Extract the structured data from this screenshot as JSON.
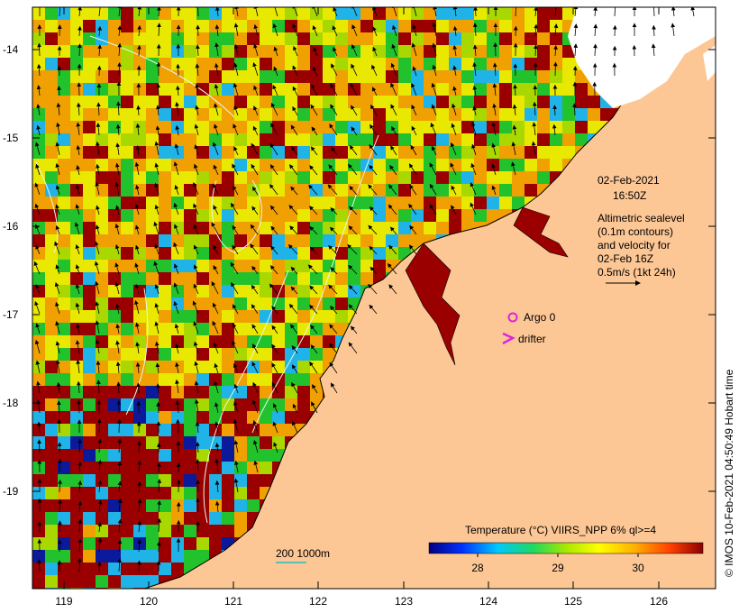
{
  "map": {
    "lon_ticks": [
      "119",
      "120",
      "121",
      "122",
      "123",
      "124",
      "125",
      "126"
    ],
    "lat_ticks": [
      "-14",
      "-15",
      "-16",
      "-17",
      "-18",
      "-19"
    ],
    "colors": {
      "land": "#fdc795",
      "cold": "#0a1a9a",
      "cool": "#1fb3e8",
      "mid": "#22c22c",
      "warm": "#e8e800",
      "hot": "#f0a000",
      "hottest": "#9a0000",
      "cloud": "#ffffff",
      "coast": "#000000",
      "contour": "#e6f6f0"
    }
  },
  "annotation": {
    "date": "02-Feb-2021",
    "time": "16:50Z",
    "caption_lines": [
      "Altimetric sealevel",
      "(0.1m contours)",
      "and velocity for",
      "02-Feb 16Z",
      "0.5m/s (1kt 24h)"
    ]
  },
  "legend": {
    "argo_label": "Argo 0",
    "drifter_label": "drifter",
    "depth_scale": "200  1000m"
  },
  "colorbar": {
    "title": "Temperature (°C) VIIRS_NPP 6% ql>=4",
    "ticks": [
      "28",
      "29",
      "30"
    ]
  },
  "credit": "© IMOS 10-Feb-2021 04:50:49 Hobart time"
}
